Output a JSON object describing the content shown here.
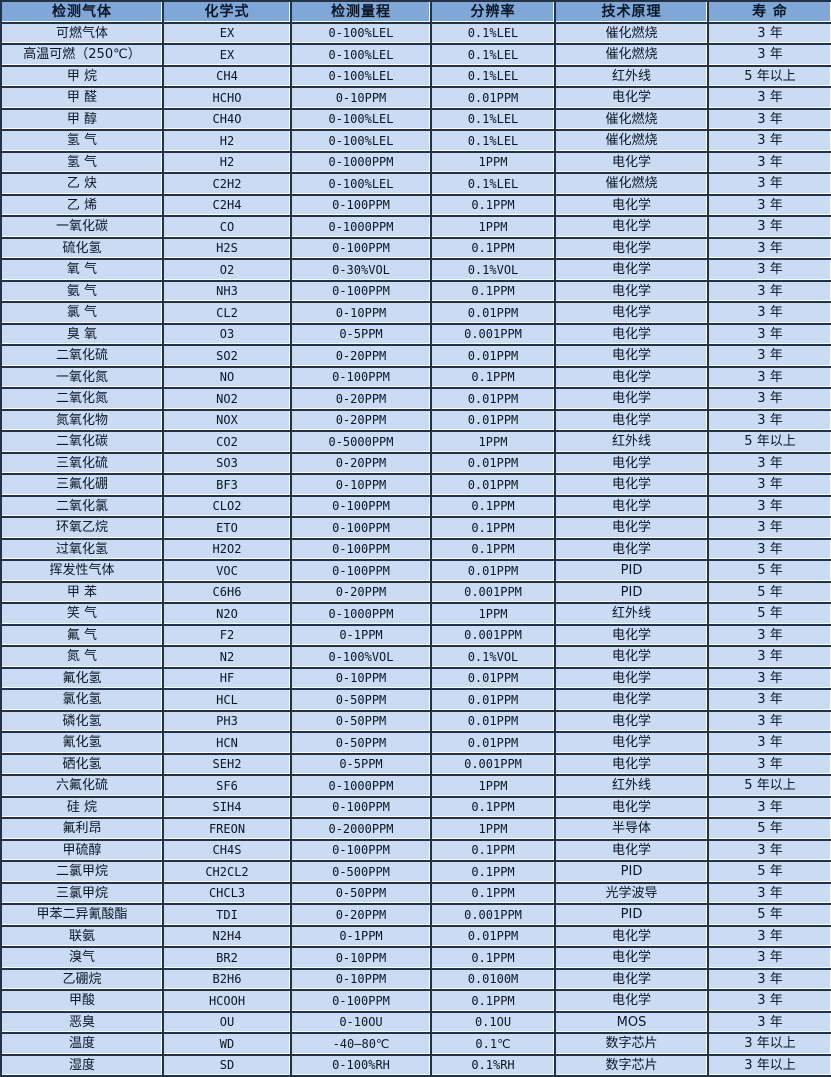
{
  "colors": {
    "header_bg": "#7fa8d9",
    "row_bg": "#cadcf3",
    "grid_border": "#22324a",
    "grid_highlight": "#ffffff",
    "text": "#0b1626"
  },
  "table": {
    "headers": [
      "检测气体",
      "化学式",
      "检测量程",
      "分辨率",
      "技术原理",
      "寿 命"
    ],
    "rows": [
      [
        "可燃气体",
        "EX",
        "0-100%LEL",
        "0.1%LEL",
        "催化燃烧",
        "3 年"
      ],
      [
        "高温可燃（250℃）",
        "EX",
        "0-100%LEL",
        "0.1%LEL",
        "催化燃烧",
        "3 年"
      ],
      [
        "甲 烷",
        "CH4",
        "0-100%LEL",
        "0.1%LEL",
        "红外线",
        "5 年以上"
      ],
      [
        "甲 醛",
        "HCHO",
        "0-10PPM",
        "0.01PPM",
        "电化学",
        "3 年"
      ],
      [
        "甲 醇",
        "CH4O",
        "0-100%LEL",
        "0.1%LEL",
        "催化燃烧",
        "3 年"
      ],
      [
        "氢 气",
        "H2",
        "0-100%LEL",
        "0.1%LEL",
        "催化燃烧",
        "3 年"
      ],
      [
        "氢 气",
        "H2",
        "0-1000PPM",
        "1PPM",
        "电化学",
        "3 年"
      ],
      [
        "乙 炔",
        "C2H2",
        "0-100%LEL",
        "0.1%LEL",
        "催化燃烧",
        "3 年"
      ],
      [
        "乙 烯",
        "C2H4",
        "0-100PPM",
        "0.1PPM",
        "电化学",
        "3 年"
      ],
      [
        "一氧化碳",
        "CO",
        "0-1000PPM",
        "1PPM",
        "电化学",
        "3 年"
      ],
      [
        "硫化氢",
        "H2S",
        "0-100PPM",
        "0.1PPM",
        "电化学",
        "3 年"
      ],
      [
        "氧 气",
        "O2",
        "0-30%VOL",
        "0.1%VOL",
        "电化学",
        "3 年"
      ],
      [
        "氨 气",
        "NH3",
        "0-100PPM",
        "0.1PPM",
        "电化学",
        "3 年"
      ],
      [
        "氯 气",
        "CL2",
        "0-10PPM",
        "0.01PPM",
        "电化学",
        "3 年"
      ],
      [
        "臭 氧",
        "O3",
        "0-5PPM",
        "0.001PPM",
        "电化学",
        "3 年"
      ],
      [
        "二氧化硫",
        "SO2",
        "0-20PPM",
        "0.01PPM",
        "电化学",
        "3 年"
      ],
      [
        "一氧化氮",
        "NO",
        "0-100PPM",
        "0.1PPM",
        "电化学",
        "3 年"
      ],
      [
        "二氧化氮",
        "NO2",
        "0-20PPM",
        "0.01PPM",
        "电化学",
        "3 年"
      ],
      [
        "氮氧化物",
        "NOX",
        "0-20PPM",
        "0.01PPM",
        "电化学",
        "3 年"
      ],
      [
        "二氧化碳",
        "CO2",
        "0-5000PPM",
        "1PPM",
        "红外线",
        "5 年以上"
      ],
      [
        "三氧化硫",
        "SO3",
        "0-20PPM",
        "0.01PPM",
        "电化学",
        "3 年"
      ],
      [
        "三氟化硼",
        "BF3",
        "0-10PPM",
        "0.01PPM",
        "电化学",
        "3 年"
      ],
      [
        "二氧化氯",
        "CLO2",
        "0-100PPM",
        "0.1PPM",
        "电化学",
        "3 年"
      ],
      [
        "环氧乙烷",
        "ETO",
        "0-100PPM",
        "0.1PPM",
        "电化学",
        "3 年"
      ],
      [
        "过氧化氢",
        "H2O2",
        "0-100PPM",
        "0.1PPM",
        "电化学",
        "3 年"
      ],
      [
        "挥发性气体",
        "VOC",
        "0-100PPM",
        "0.01PPM",
        "PID",
        "5 年"
      ],
      [
        "甲 苯",
        "C6H6",
        "0-20PPM",
        "0.001PPM",
        "PID",
        "5 年"
      ],
      [
        "笑 气",
        "N2O",
        "0-1000PPM",
        "1PPM",
        "红外线",
        "5 年"
      ],
      [
        "氟 气",
        "F2",
        "0-1PPM",
        "0.001PPM",
        "电化学",
        "3 年"
      ],
      [
        "氮 气",
        "N2",
        "0-100%VOL",
        "0.1%VOL",
        "电化学",
        "3 年"
      ],
      [
        "氟化氢",
        "HF",
        "0-10PPM",
        "0.01PPM",
        "电化学",
        "3 年"
      ],
      [
        "氯化氢",
        "HCL",
        "0-50PPM",
        "0.01PPM",
        "电化学",
        "3 年"
      ],
      [
        "磷化氢",
        "PH3",
        "0-50PPM",
        "0.01PPM",
        "电化学",
        "3 年"
      ],
      [
        "氰化氢",
        "HCN",
        "0-50PPM",
        "0.01PPM",
        "电化学",
        "3 年"
      ],
      [
        "硒化氢",
        "SEH2",
        "0-5PPM",
        "0.001PPM",
        "电化学",
        "3 年"
      ],
      [
        "六氟化硫",
        "SF6",
        "0-1000PPM",
        "1PPM",
        "红外线",
        "5 年以上"
      ],
      [
        "硅 烷",
        "SIH4",
        "0-100PPM",
        "0.1PPM",
        "电化学",
        "3 年"
      ],
      [
        "氟利昂",
        "FREON",
        "0-2000PPM",
        "1PPM",
        "半导体",
        "5 年"
      ],
      [
        "甲硫醇",
        "CH4S",
        "0-100PPM",
        "0.1PPM",
        "电化学",
        "3 年"
      ],
      [
        "二氯甲烷",
        "CH2CL2",
        "0-500PPM",
        "0.1PPM",
        "PID",
        "5 年"
      ],
      [
        "三氯甲烷",
        "CHCL3",
        "0-50PPM",
        "0.1PPM",
        "光学波导",
        "3 年"
      ],
      [
        "甲苯二异氰酸酯",
        "TDI",
        "0-20PPM",
        "0.001PPM",
        "PID",
        "5 年"
      ],
      [
        "联氨",
        "N2H4",
        "0-1PPM",
        "0.01PPM",
        "电化学",
        "3 年"
      ],
      [
        "溴气",
        "BR2",
        "0-10PPM",
        "0.1PPM",
        "电化学",
        "3 年"
      ],
      [
        "乙硼烷",
        "B2H6",
        "0-10PPM",
        "0.0100M",
        "电化学",
        "3 年"
      ],
      [
        "甲酸",
        "HCOOH",
        "0-100PPM",
        "0.1PPM",
        "电化学",
        "3 年"
      ],
      [
        "恶臭",
        "OU",
        "0-10OU",
        "0.1OU",
        "MOS",
        "3 年"
      ],
      [
        "温度",
        "WD",
        "-40—80℃",
        "0.1℃",
        "数字芯片",
        "3 年以上"
      ],
      [
        "湿度",
        "SD",
        "0-100%RH",
        "0.1%RH",
        "数字芯片",
        "3 年以上"
      ]
    ]
  }
}
